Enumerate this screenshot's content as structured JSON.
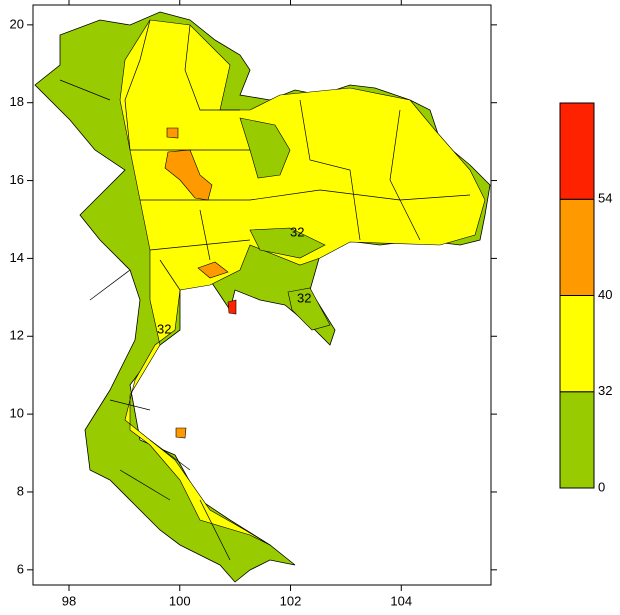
{
  "map": {
    "xlim": [
      97.35,
      105.62
    ],
    "ylim": [
      5.61,
      20.51
    ],
    "xticks": [
      98,
      100,
      102,
      104
    ],
    "yticks": [
      6,
      8,
      10,
      12,
      14,
      16,
      18,
      20
    ],
    "contour_labels": [
      "32",
      "32",
      "32"
    ],
    "colorbar": {
      "levels": [
        0,
        32,
        40,
        54
      ],
      "colors": [
        "#99cc00",
        "#ffff00",
        "#ff9900",
        "#ff2200"
      ]
    }
  }
}
